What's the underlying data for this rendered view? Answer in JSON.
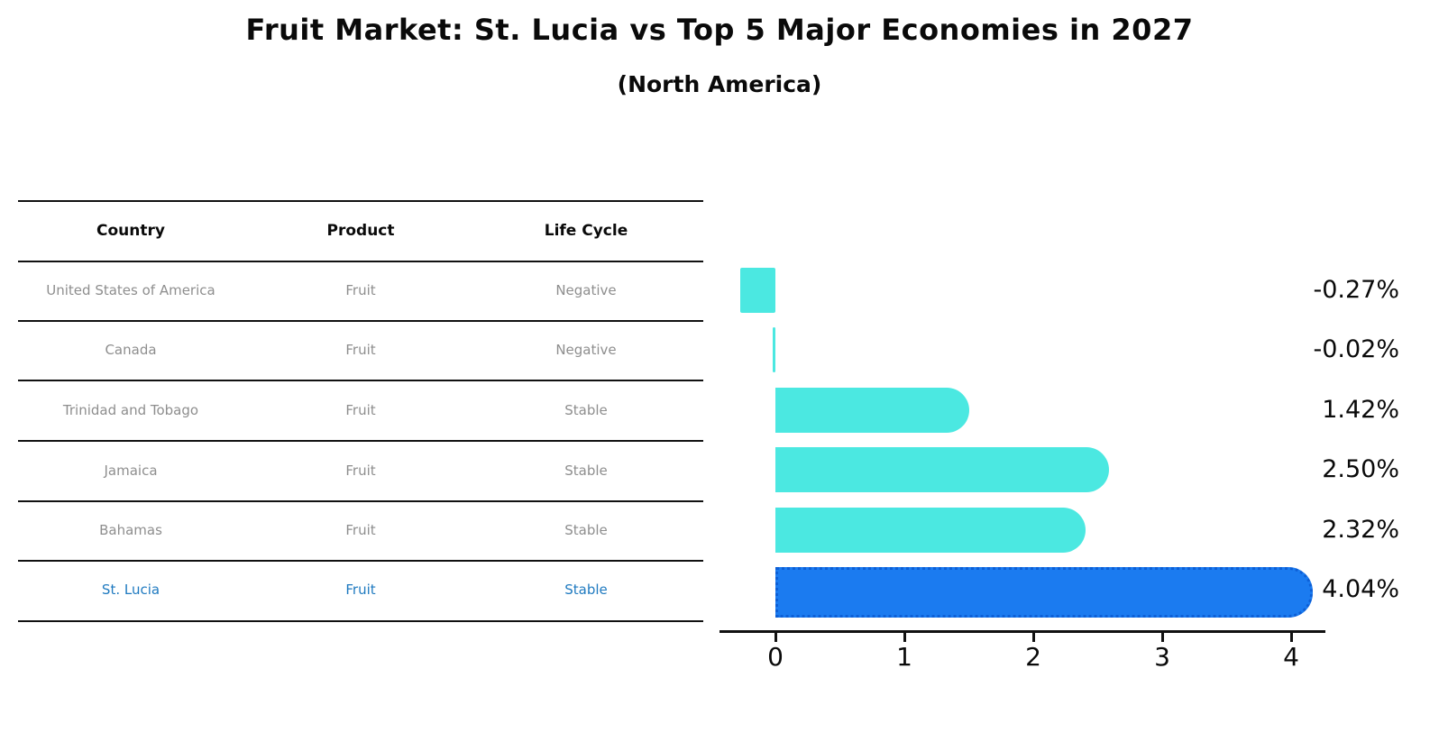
{
  "title": "Fruit Market: St. Lucia vs Top 5 Major Economies in 2027",
  "subtitle": "(North America)",
  "table": {
    "headers": [
      "Country",
      "Product",
      "Life Cycle"
    ],
    "rows": [
      {
        "country": "United States of America",
        "product": "Fruit",
        "life_cycle": "Negative",
        "highlight": false
      },
      {
        "country": "Canada",
        "product": "Fruit",
        "life_cycle": "Negative",
        "highlight": false
      },
      {
        "country": "Trinidad and Tobago",
        "product": "Fruit",
        "life_cycle": "Stable",
        "highlight": false
      },
      {
        "country": "Jamaica",
        "product": "Fruit",
        "life_cycle": "Stable",
        "highlight": false
      },
      {
        "country": "Bahamas",
        "product": "Fruit",
        "life_cycle": "Stable",
        "highlight": false
      },
      {
        "country": "St. Lucia",
        "product": "Fruit",
        "life_cycle": "Stable",
        "highlight": true
      }
    ]
  },
  "chart_data": {
    "type": "bar",
    "orientation": "horizontal",
    "title": "Fruit Market: St. Lucia vs Top 5 Major Economies in 2027 (North America)",
    "categories": [
      "United States of America",
      "Canada",
      "Trinidad and Tobago",
      "Jamaica",
      "Bahamas",
      "St. Lucia"
    ],
    "values": [
      -0.27,
      -0.02,
      1.42,
      2.5,
      2.32,
      4.04
    ],
    "value_labels": [
      "-0.27%",
      "-0.02%",
      "1.42%",
      "2.50%",
      "2.32%",
      "4.04%"
    ],
    "x_tick_labels": [
      "0",
      "1",
      "2",
      "3",
      "4"
    ],
    "x_ticks": [
      0,
      1,
      2,
      3,
      4
    ],
    "xlim": [
      -0.45,
      4.3
    ],
    "grid": false,
    "legend": "none",
    "highlight_index": 5,
    "colors": {
      "bar": "#4be8e1",
      "highlight_bar": "#1b7bf0",
      "highlight_border": "#0d5fd6",
      "highlight_text": "#1f7ac0",
      "axis": "#111111",
      "label_text": "#0a0a0a",
      "table_text": "#8e8e8e"
    }
  }
}
